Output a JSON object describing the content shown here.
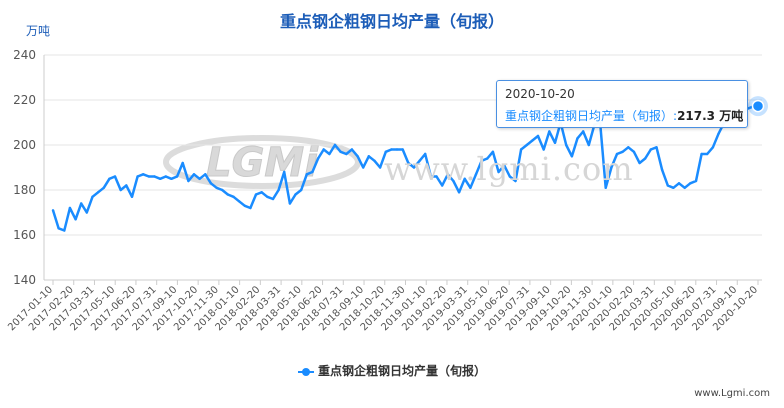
{
  "title": "重点钢企粗钢日均产量（旬报）",
  "unit_label": "万吨",
  "legend_label": "重点钢企粗钢日均产量（旬报）",
  "credit": "www.Lgmi.com",
  "watermark": {
    "logo_text": "LGMi",
    "site_text": "www.lgmi.com"
  },
  "tooltip": {
    "date": "2020-10-20",
    "series_label": "重点钢企粗钢日均产量（旬报）",
    "separator": ":",
    "value": "217.3",
    "unit": "万吨"
  },
  "colors": {
    "series": "#1a8cff",
    "title": "#1c5db8",
    "grid": "#e6e6e6"
  },
  "chart_data": {
    "type": "line",
    "title": "重点钢企粗钢日均产量（旬报）",
    "ylabel": "万吨",
    "ylim": [
      140,
      240
    ],
    "yticks": [
      140,
      160,
      180,
      200,
      220,
      240
    ],
    "grid": true,
    "legend_position": "bottom",
    "x_tick_labels": [
      "2017-01-10",
      "2017-02-20",
      "2017-03-31",
      "2017-05-10",
      "2017-06-20",
      "2017-07-31",
      "2017-09-10",
      "2017-10-20",
      "2017-11-30",
      "2018-01-10",
      "2018-02-20",
      "2018-03-31",
      "2018-05-10",
      "2018-06-20",
      "2018-07-31",
      "2018-09-10",
      "2018-10-20",
      "2018-11-30",
      "2019-01-10",
      "2019-02-20",
      "2019-03-31",
      "2019-05-10",
      "2019-06-20",
      "2019-07-31",
      "2019-09-10",
      "2019-10-20",
      "2019-11-30",
      "2020-01-10",
      "2020-02-20",
      "2020-03-31",
      "2020-05-10",
      "2020-06-20",
      "2020-07-31",
      "2020-09-10",
      "2020-10-20"
    ],
    "series": [
      {
        "name": "重点钢企粗钢日均产量（旬报）",
        "values": [
          171,
          163,
          162,
          172,
          167,
          174,
          170,
          177,
          179,
          181,
          185,
          186,
          180,
          182,
          177,
          186,
          187,
          186,
          186,
          185,
          186,
          185,
          186,
          192,
          184,
          187,
          185,
          187,
          183,
          181,
          180,
          178,
          177,
          175,
          173,
          172,
          178,
          179,
          177,
          176,
          180,
          188,
          174,
          178,
          180,
          187,
          188,
          194,
          198,
          196,
          200,
          197,
          196,
          198,
          195,
          190,
          195,
          193,
          190,
          197,
          198,
          198,
          198,
          192,
          190,
          193,
          196,
          186,
          186,
          182,
          187,
          184,
          179,
          185,
          181,
          187,
          193,
          194,
          197,
          188,
          191,
          186,
          184,
          198,
          200,
          202,
          204,
          198,
          206,
          201,
          210,
          200,
          195,
          203,
          206,
          200,
          209,
          210,
          181,
          190,
          196,
          197,
          199,
          197,
          192,
          194,
          198,
          199,
          189,
          182,
          181,
          183,
          181,
          183,
          184,
          196,
          196,
          199,
          205,
          210,
          211,
          215,
          213,
          216,
          217,
          217.3
        ]
      }
    ]
  }
}
